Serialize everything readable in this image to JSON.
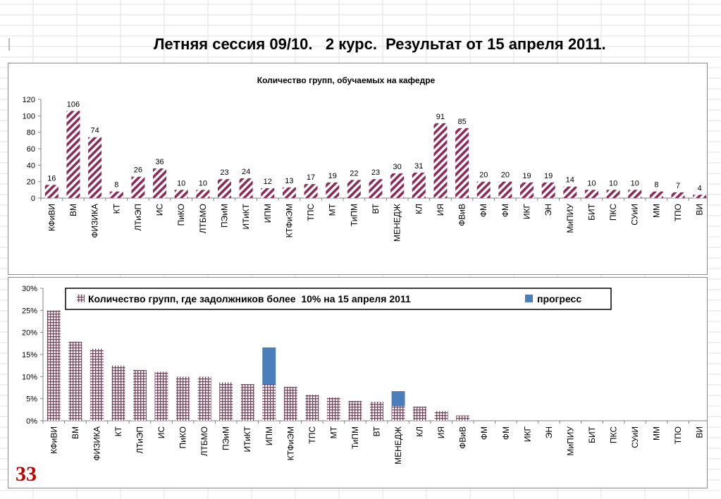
{
  "page": {
    "title": "Летняя сессия 09/10.   2 курс.  Результат от 15 апреля 2011.",
    "slide_number": "33"
  },
  "colors": {
    "hatch": "#8c2a5a",
    "progress": "#4a7ebb",
    "grid": "#e2e2e2",
    "axis": "#808080"
  },
  "chart_data": [
    {
      "type": "bar",
      "title": "Количество групп, обучаемых на кафедре",
      "categories": [
        "КФиВИ",
        "ВМ",
        "ФИЗИКА",
        "КТ",
        "ЛТиЭП",
        "ИС",
        "ПиКО",
        "ЛТБМО",
        "ПЭиМ",
        "ИТиКТ",
        "ИПМ",
        "КТФиЭМ",
        "ТПС",
        "МТ",
        "ТиПМ",
        "ВТ",
        "МЕНЕДЖ",
        "КЛ",
        "ИЯ",
        "ФВиВ",
        "ФМ",
        "ФМ",
        "ИКГ",
        "ЭН",
        "МиПИУ",
        "БИТ",
        "ПКС",
        "СУиИ",
        "ММ",
        "ТПО",
        "ВИ"
      ],
      "values": [
        16,
        106,
        74,
        8,
        26,
        36,
        10,
        10,
        23,
        24,
        12,
        13,
        17,
        19,
        22,
        23,
        30,
        31,
        91,
        85,
        20,
        20,
        19,
        19,
        14,
        10,
        10,
        10,
        8,
        7,
        4
      ],
      "yticks": [
        "0",
        "20",
        "40",
        "60",
        "80",
        "100",
        "120"
      ],
      "ylim": [
        0,
        120
      ],
      "data_labels": true,
      "grid": false
    },
    {
      "type": "bar",
      "stacked": true,
      "categories": [
        "КФиВИ",
        "ВМ",
        "ФИЗИКА",
        "КТ",
        "ЛТиЭП",
        "ИС",
        "ПиКО",
        "ЛТБМО",
        "ПЭиМ",
        "ИТиКТ",
        "ИПМ",
        "КТФиЭМ",
        "ТПС",
        "МТ",
        "ТиПМ",
        "ВТ",
        "МЕНЕДЖ",
        "КЛ",
        "ИЯ",
        "ФВиВ",
        "ФМ",
        "ФМ",
        "ИКГ",
        "ЭН",
        "МиПИУ",
        "БИТ",
        "ПКС",
        "СУиИ",
        "ММ",
        "ТПО",
        "ВИ"
      ],
      "series": [
        {
          "name": "Количество групп, где задолжников более  10% на 15 апреля 2011",
          "values": [
            25,
            17.9,
            16.3,
            12.5,
            11.5,
            11.1,
            10,
            10,
            8.7,
            8.3,
            8.3,
            7.7,
            5.9,
            5.3,
            4.5,
            4.3,
            3.3,
            3.2,
            2.2,
            1.2,
            0,
            0,
            0,
            0,
            0,
            0,
            0,
            0,
            0,
            0,
            0
          ]
        },
        {
          "name": "прогресс",
          "values": [
            0,
            0,
            0,
            0,
            0,
            0,
            0,
            0,
            0,
            0,
            8.3,
            0,
            0,
            0,
            0,
            0,
            3.4,
            0,
            0,
            0,
            0,
            0,
            0,
            0,
            0,
            0,
            0,
            0,
            0,
            0,
            0
          ]
        }
      ],
      "yticks": [
        "0%",
        "5%",
        "10%",
        "15%",
        "20%",
        "25%",
        "30%"
      ],
      "ylim": [
        0,
        30
      ],
      "legend": "top",
      "grid": false
    }
  ]
}
